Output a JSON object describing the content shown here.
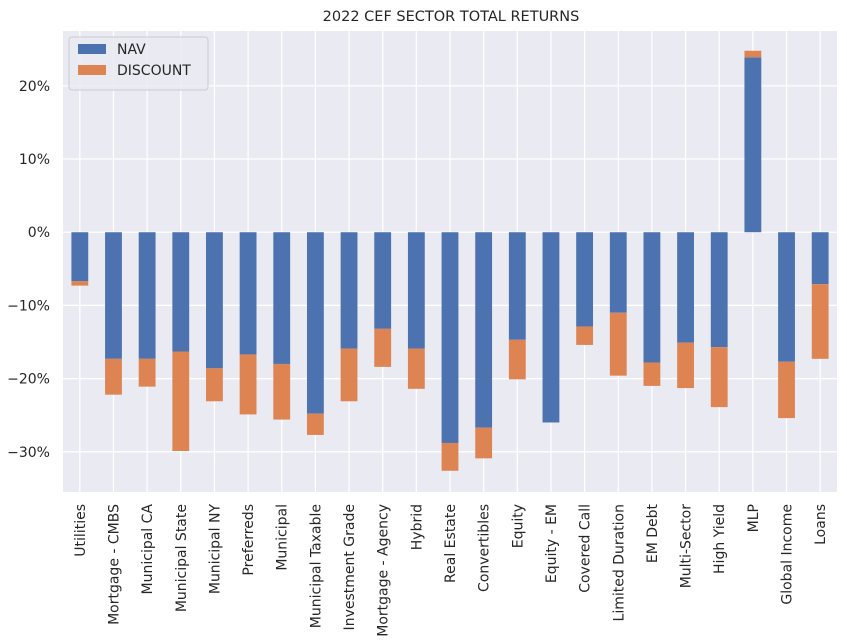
{
  "colors": {
    "nav": "#4c72b0",
    "discount": "#dd8452",
    "plot_background": "#eaeaf2",
    "grid": "#ffffff"
  },
  "chart_data": {
    "type": "bar",
    "stacked": true,
    "title": "2022 CEF SECTOR TOTAL RETURNS",
    "xlabel": "",
    "ylabel": "",
    "ylim": [
      -35.5,
      27.5
    ],
    "yticks": [
      -30,
      -20,
      -10,
      0,
      10,
      20
    ],
    "ytick_labels": [
      "−30%",
      "−20%",
      "−10%",
      "0%",
      "10%",
      "20%"
    ],
    "legend_position": "top-left",
    "grid": true,
    "categories": [
      "Utilities",
      "Mortgage - CMBS",
      "Municipal CA",
      "Municipal State",
      "Municipal NY",
      "Preferreds",
      "Municipal",
      "Municipal Taxable",
      "Investment Grade",
      "Mortgage - Agency",
      "Hybrid",
      "Real Estate",
      "Convertibles",
      "Equity",
      "Equity - EM",
      "Covered Call",
      "Limited Duration",
      "EM Debt",
      "Multi-Sector",
      "High Yield",
      "MLP",
      "Global Income",
      "Loans"
    ],
    "series": [
      {
        "name": "NAV",
        "values": [
          -6.7,
          -17.3,
          -17.3,
          -16.3,
          -18.6,
          -16.7,
          -18.0,
          -24.8,
          -15.9,
          -13.2,
          -15.9,
          -28.8,
          -26.7,
          -14.7,
          -26.0,
          -12.9,
          -11.0,
          -17.8,
          -15.1,
          -15.7,
          23.9,
          -17.7,
          -7.1
        ]
      },
      {
        "name": "DISCOUNT",
        "values": [
          -0.6,
          -4.9,
          -3.8,
          -13.6,
          -4.5,
          -8.2,
          -7.6,
          -2.9,
          -7.2,
          -5.2,
          -5.5,
          -3.8,
          -4.2,
          -5.4,
          0,
          -2.5,
          -8.6,
          -3.2,
          -6.2,
          -8.2,
          0.9,
          -7.7,
          -10.2
        ]
      }
    ]
  }
}
